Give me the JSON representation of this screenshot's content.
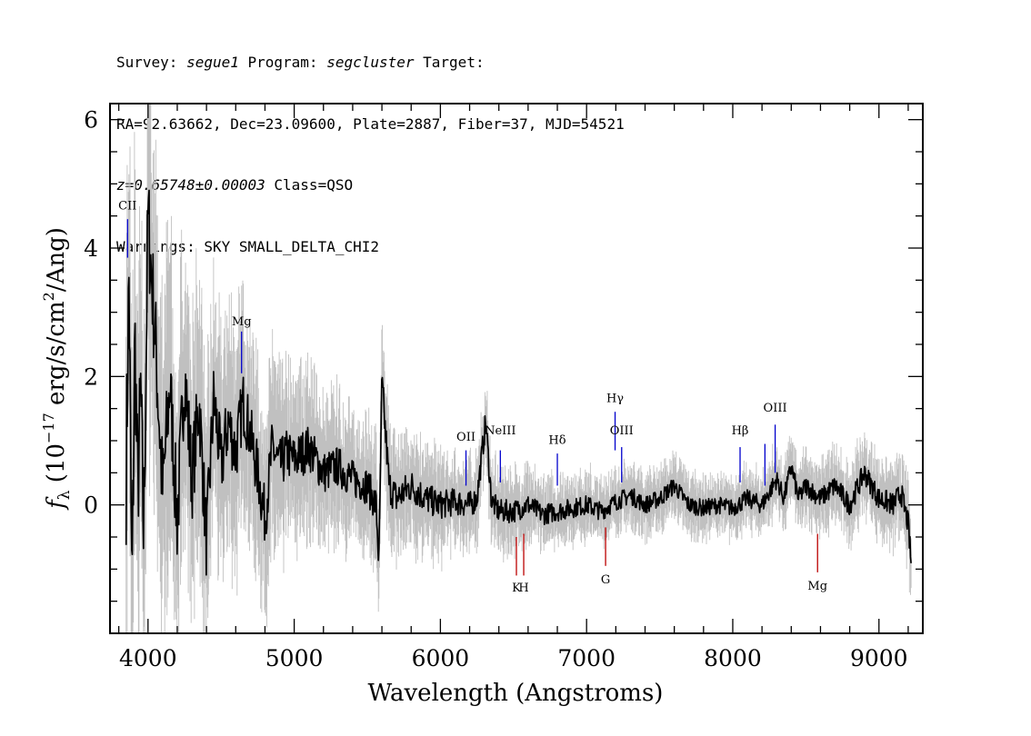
{
  "header": {
    "line1": {
      "survey_label": "Survey: ",
      "survey": "segue1",
      "program_label": " Program: ",
      "program": "segcluster",
      "target_label": " Target:"
    },
    "line2": "RA=92.63662, Dec=23.09600, Plate=2887, Fiber=37, MJD=54521",
    "line3": {
      "redshift": "z=0.65748±0.00003",
      "class": " Class=QSO"
    },
    "line4": "Warnings: SKY SMALL_DELTA_CHI2"
  },
  "chart_data": {
    "type": "line",
    "xlabel": "Wavelength (Angstroms)",
    "ylabel_parts": {
      "f": "f",
      "sub": "λ",
      "pre": " (10",
      "exp1": "−17",
      "mid": " erg/s/cm",
      "exp2": "2",
      "post": "/Ang)"
    },
    "xlim": [
      3740,
      9300
    ],
    "ylim": [
      -2.0,
      6.25
    ],
    "x_ticks": [
      4000,
      5000,
      6000,
      7000,
      8000,
      9000
    ],
    "x_tick_labels": [
      "4000",
      "5000",
      "6000",
      "7000",
      "8000",
      "9000"
    ],
    "y_ticks": [
      0,
      2,
      4,
      6
    ],
    "y_tick_labels": [
      "0",
      "2",
      "4",
      "6"
    ],
    "colors": {
      "flux": "#000000",
      "error": "#c0c0c0",
      "emission": "#0000cc",
      "absorption": "#bb0000"
    },
    "series": [
      {
        "role": "flux",
        "x": [
          3850,
          3870,
          3890,
          3910,
          3930,
          3950,
          3970,
          4000,
          4050,
          4100,
          4150,
          4200,
          4250,
          4300,
          4350,
          4400,
          4450,
          4500,
          4550,
          4600,
          4650,
          4700,
          4750,
          4800,
          4850,
          4900,
          4950,
          5000,
          5100,
          5200,
          5300,
          5400,
          5500,
          5560,
          5580,
          5600,
          5650,
          5700,
          5800,
          5900,
          6000,
          6100,
          6200,
          6250,
          6310,
          6350,
          6400,
          6500,
          6600,
          6700,
          6800,
          6900,
          7000,
          7100,
          7200,
          7300,
          7400,
          7500,
          7600,
          7700,
          7800,
          7900,
          8000,
          8100,
          8200,
          8250,
          8300,
          8350,
          8400,
          8450,
          8500,
          8600,
          8700,
          8800,
          8900,
          9000,
          9100,
          9150,
          9200,
          9220
        ],
        "y": [
          0.5,
          3.6,
          -1.5,
          2.6,
          0.2,
          1.8,
          -0.5,
          4.5,
          2.6,
          0.2,
          1.9,
          -0.3,
          2.1,
          0.4,
          1.6,
          -0.6,
          1.7,
          0.6,
          1.3,
          0.8,
          1.6,
          1.1,
          0.5,
          -0.2,
          0.9,
          0.6,
          0.8,
          0.7,
          0.9,
          0.5,
          0.6,
          0.4,
          0.3,
          0.0,
          -0.9,
          1.9,
          0.3,
          0.1,
          0.3,
          0.1,
          0.0,
          0.05,
          0.0,
          0.1,
          1.3,
          0.05,
          -0.1,
          -0.1,
          0.0,
          -0.15,
          -0.1,
          -0.05,
          0.0,
          -0.1,
          0.05,
          0.15,
          0.0,
          0.1,
          0.3,
          0.0,
          -0.05,
          0.0,
          -0.05,
          0.1,
          0.0,
          0.2,
          0.4,
          0.1,
          0.6,
          0.1,
          0.3,
          0.1,
          0.3,
          0.0,
          0.5,
          0.1,
          0.0,
          0.2,
          -0.3,
          -0.9
        ]
      },
      {
        "role": "error",
        "x": [
          3850,
          3900,
          3950,
          4000,
          4100,
          4200,
          4300,
          4400,
          4500,
          4600,
          4700,
          4800,
          4900,
          5000,
          5200,
          5400,
          5600,
          5800,
          6000,
          6200,
          6400,
          6600,
          6800,
          7000,
          7200,
          7400,
          7600,
          7800,
          8000,
          8200,
          8400,
          8600,
          8800,
          9000,
          9200
        ],
        "e": [
          3.0,
          2.7,
          2.5,
          2.4,
          2.1,
          1.9,
          1.8,
          1.6,
          1.5,
          1.4,
          1.3,
          1.2,
          1.1,
          1.0,
          0.9,
          0.8,
          0.75,
          0.7,
          0.6,
          0.55,
          0.5,
          0.45,
          0.42,
          0.4,
          0.38,
          0.37,
          0.36,
          0.36,
          0.36,
          0.38,
          0.4,
          0.42,
          0.45,
          0.48,
          0.5
        ]
      }
    ],
    "emission_lines": [
      {
        "label": "CII",
        "x": 3860,
        "y0": 3.85,
        "y1": 4.45,
        "label_y": 4.6
      },
      {
        "label": "Mg",
        "x": 4640,
        "y0": 2.05,
        "y1": 2.7,
        "label_y": 2.8
      },
      {
        "label": "OII",
        "x": 6175,
        "y0": 0.3,
        "y1": 0.85,
        "label_y": 1.0
      },
      {
        "label": "NeIII",
        "x": 6410,
        "y0": 0.35,
        "y1": 0.85,
        "label_y": 1.1
      },
      {
        "label": "Hδ",
        "x": 6800,
        "y0": 0.3,
        "y1": 0.8,
        "label_y": 0.95
      },
      {
        "label": "Hγ",
        "x": 7195,
        "y0": 0.85,
        "y1": 1.45,
        "label_y": 1.6
      },
      {
        "label": "OIII",
        "x": 7240,
        "y0": 0.35,
        "y1": 0.9,
        "label_y": 1.1
      },
      {
        "label": "Hβ",
        "x": 8050,
        "y0": 0.35,
        "y1": 0.9,
        "label_y": 1.1
      },
      {
        "label": "",
        "x": 8220,
        "y0": 0.3,
        "y1": 0.95,
        "label_y": 0
      },
      {
        "label": "OIII",
        "x": 8290,
        "y0": 0.5,
        "y1": 1.25,
        "label_y": 1.45
      }
    ],
    "absorption_lines": [
      {
        "label": "K",
        "x": 6520,
        "y0": -0.5,
        "y1": -1.1,
        "label_y": -1.35
      },
      {
        "label": "H",
        "x": 6570,
        "y0": -0.45,
        "y1": -1.1,
        "label_y": -1.35
      },
      {
        "label": "G",
        "x": 7130,
        "y0": -0.35,
        "y1": -0.95,
        "label_y": -1.22
      },
      {
        "label": "Mg",
        "x": 8580,
        "y0": -0.45,
        "y1": -1.05,
        "label_y": -1.32
      }
    ]
  }
}
